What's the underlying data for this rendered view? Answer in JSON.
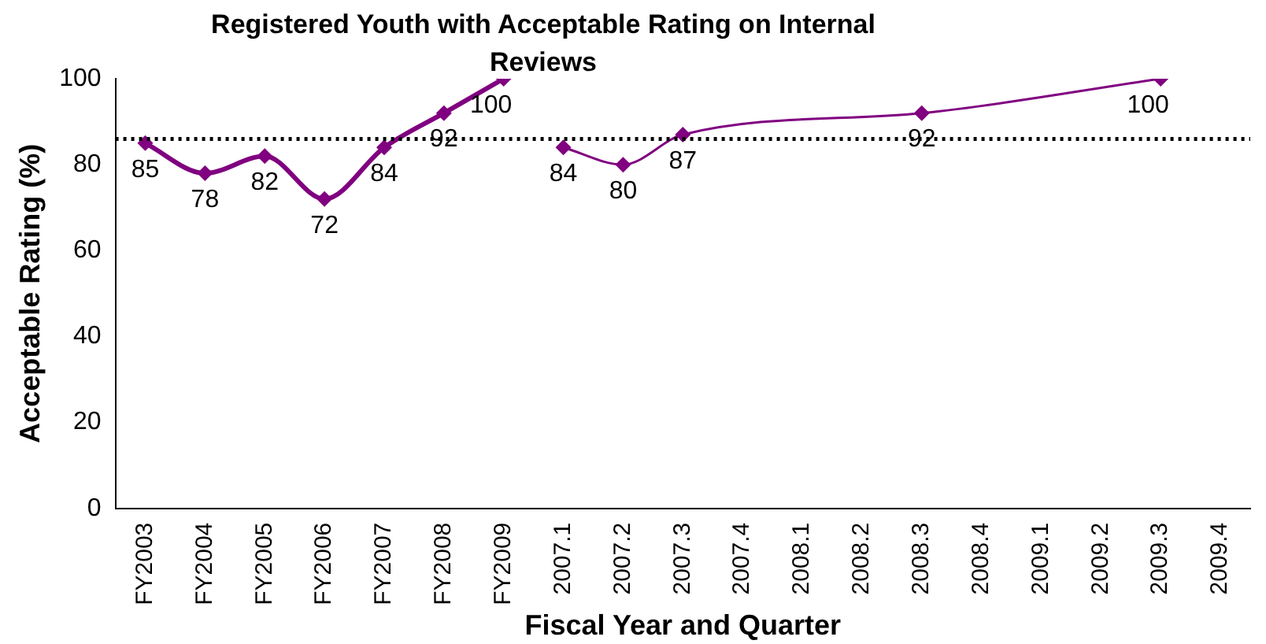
{
  "chart_data": {
    "type": "line",
    "title": "Registered Youth with Acceptable Rating on Internal Reviews",
    "xlabel": "Fiscal Year and Quarter",
    "ylabel": "Acceptable Rating (%)",
    "categories": [
      "FY2003",
      "FY2004",
      "FY2005",
      "FY2006",
      "FY2007",
      "FY2008",
      "FY2009",
      "2007.1",
      "2007.2",
      "2007.3",
      "2007.4",
      "2008.1",
      "2008.2",
      "2008.3",
      "2008.4",
      "2009.1",
      "2009.2",
      "2009.3",
      "2009.4"
    ],
    "series": [
      {
        "color": "#800080",
        "values": [
          85,
          78,
          82,
          72,
          84,
          92,
          100,
          null,
          null,
          null,
          null,
          null,
          null,
          null,
          null,
          null,
          null,
          null,
          null
        ]
      },
      {
        "color": "#800080",
        "values": [
          null,
          null,
          null,
          null,
          null,
          null,
          null,
          84,
          80,
          87,
          null,
          null,
          null,
          92,
          null,
          null,
          null,
          100,
          null
        ]
      }
    ],
    "ylim": [
      0,
      100
    ],
    "yticks": [
      0,
      20,
      40,
      60,
      80,
      100
    ],
    "grid": false,
    "legend": false,
    "marker": "diamond",
    "line_style": "solid",
    "data_labels": true,
    "ref_lines": [
      {
        "axis": "y",
        "value": 86,
        "line_style": "dotted",
        "color": "#000000"
      }
    ]
  }
}
